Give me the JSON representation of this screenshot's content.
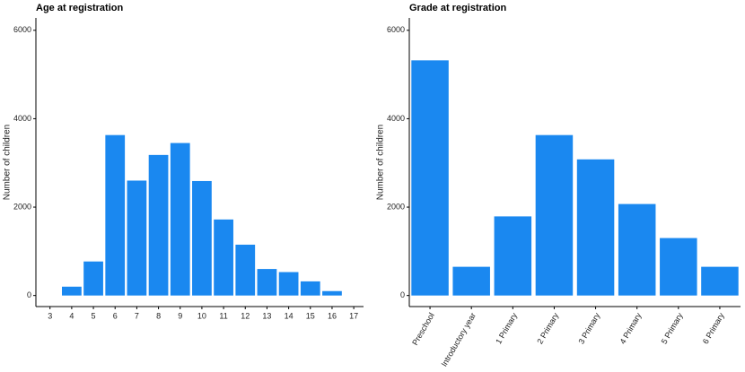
{
  "chart_data": [
    {
      "type": "bar",
      "title": "Age at registration",
      "y_label": "Number of children",
      "x": [
        4,
        5,
        6,
        7,
        8,
        9,
        10,
        11,
        12,
        13,
        14,
        15,
        16
      ],
      "values": [
        200,
        770,
        3630,
        2600,
        3180,
        3450,
        2590,
        1720,
        1150,
        600,
        530,
        320,
        100
      ],
      "color": "#1a88f0",
      "xlim": [
        2.35,
        17.45
      ],
      "xticks": [
        3,
        4,
        5,
        6,
        7,
        8,
        9,
        10,
        11,
        12,
        13,
        14,
        15,
        16,
        17
      ],
      "ylim": [
        -250,
        6280
      ],
      "yticks": [
        0,
        2000,
        4000,
        6000
      ],
      "grid": false
    },
    {
      "type": "bar",
      "title": "Grade at registration",
      "y_label": "Number of children",
      "categories": [
        "Preschool",
        "Introductory year",
        "1 Primary",
        "2 Primary",
        "3 Primary",
        "4 Primary",
        "5 Primary",
        "6 Primary"
      ],
      "values": [
        5320,
        650,
        1790,
        3630,
        3080,
        2070,
        1300,
        650
      ],
      "color": "#1a88f0",
      "ylim": [
        -250,
        6280
      ],
      "yticks": [
        0,
        2000,
        4000,
        6000
      ],
      "grid": false
    }
  ]
}
